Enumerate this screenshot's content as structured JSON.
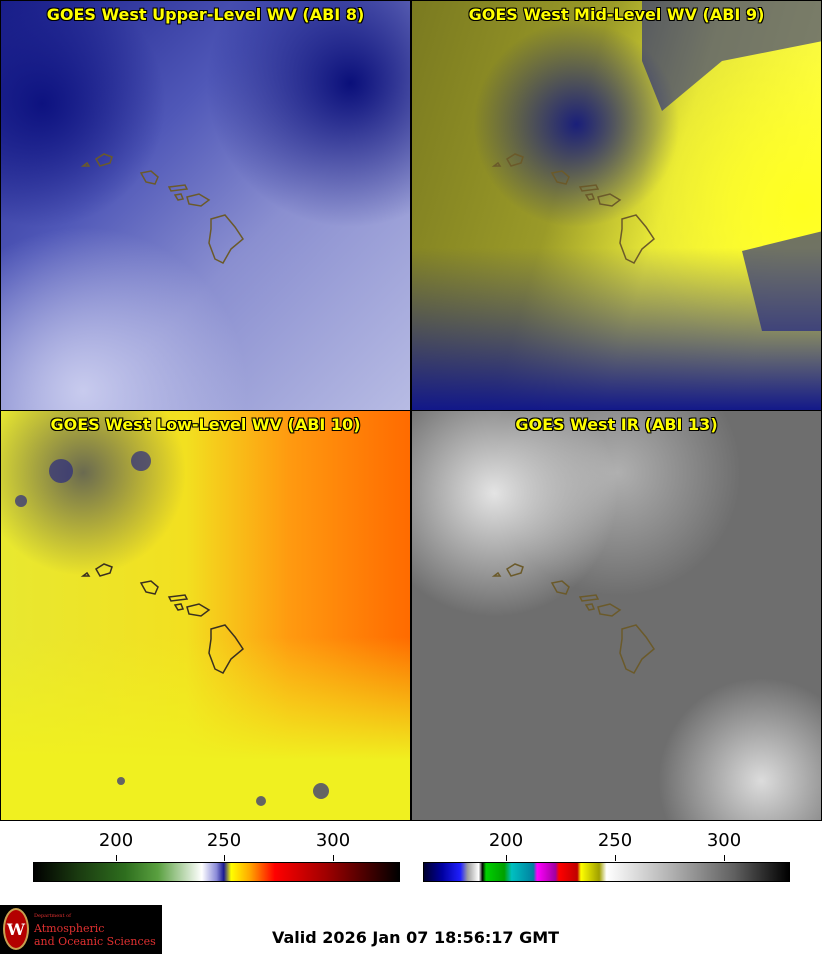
{
  "panels": [
    {
      "title": "GOES West Upper-Level WV (ABI 8)"
    },
    {
      "title": "GOES West Mid-Level WV (ABI 9)"
    },
    {
      "title": "GOES West Low-Level WV (ABI 10)"
    },
    {
      "title": "GOES West IR (ABI 13)"
    }
  ],
  "colorbar_left": {
    "ticks": [
      "200",
      "250",
      "300"
    ],
    "tick_values": [
      200,
      250,
      300
    ],
    "range": [
      162,
      333
    ]
  },
  "colorbar_right": {
    "ticks": [
      "200",
      "250",
      "300"
    ],
    "tick_values": [
      200,
      250,
      300
    ],
    "range": [
      162,
      333
    ]
  },
  "logo": {
    "department": "Department of",
    "line1": "Atmospheric",
    "line2": "and Oceanic Sciences",
    "seal_letter": "W"
  },
  "valid_text": "Valid 2026 Jan 07 18:56:17 GMT",
  "colors": {
    "title": "#ffff00",
    "coastline": "#6b5a2a"
  }
}
